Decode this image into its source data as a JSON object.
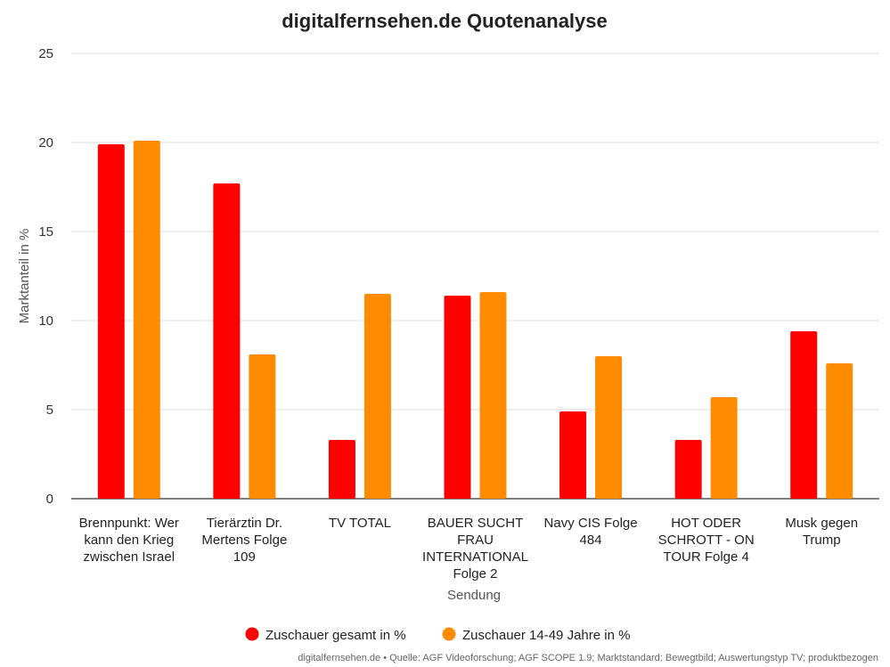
{
  "chart_data": {
    "type": "bar",
    "title": "digitalfernsehen.de Quotenanalyse",
    "xlabel": "Sendung",
    "ylabel": "Marktanteil in %",
    "ylim": [
      0,
      25
    ],
    "yticks": [
      0,
      5,
      10,
      15,
      20,
      25
    ],
    "grid": true,
    "legend_position": "bottom",
    "categories": [
      [
        "Brennpunkt: Wer",
        "kann den Krieg",
        "zwischen Israel"
      ],
      [
        "Tierärztin Dr.",
        "Mertens Folge",
        "109"
      ],
      [
        "TV TOTAL"
      ],
      [
        "BAUER SUCHT",
        "FRAU",
        "INTERNATIONAL",
        "Folge 2"
      ],
      [
        "Navy CIS Folge",
        "484"
      ],
      [
        "HOT ODER",
        "SCHROTT - ON",
        "TOUR Folge 4"
      ],
      [
        "Musk gegen",
        "Trump"
      ]
    ],
    "series": [
      {
        "name": "Zuschauer gesamt in %",
        "color": "#ff0000",
        "values": [
          19.9,
          17.7,
          3.3,
          11.4,
          4.9,
          3.3,
          9.4
        ]
      },
      {
        "name": "Zuschauer 14-49 Jahre in %",
        "color": "#ff8c00",
        "values": [
          20.1,
          8.1,
          11.5,
          11.6,
          8.0,
          5.7,
          7.6
        ]
      }
    ]
  },
  "footer": "digitalfernsehen.de • Quelle: AGF Videoforschung; AGF SCOPE 1.9; Marktstandard: Bewegtbild; Auswertungstyp TV; produktbezogen"
}
